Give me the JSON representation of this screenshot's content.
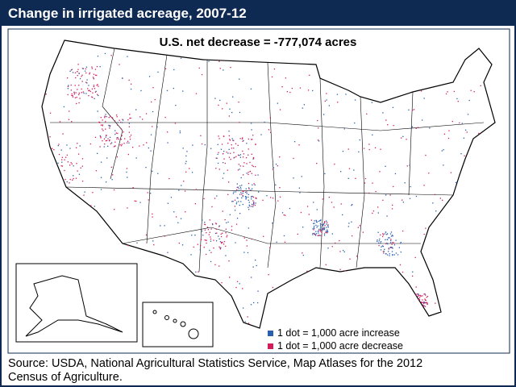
{
  "header": {
    "title": "Change in irrigated acreage, 2007-12"
  },
  "map": {
    "subtitle": "U.S. net decrease = -777,074 acres",
    "legend": [
      {
        "label": "1 dot = 1,000 acre increase",
        "color": "#2a5fb0"
      },
      {
        "label": "1 dot = 1,000 acre decrease",
        "color": "#d41b5c"
      }
    ]
  },
  "footer": {
    "source": "Source: USDA, National Agricultural Statistics Service, Map Atlases for the 2012 Census of Agriculture."
  }
}
